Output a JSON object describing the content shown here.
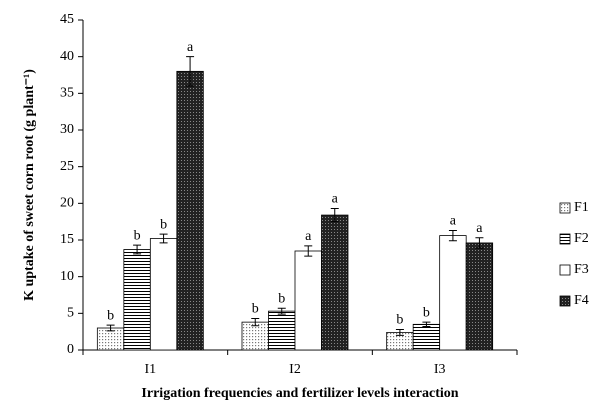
{
  "chart_data": {
    "type": "bar",
    "y_label": "K uptake of sweet corn root (g plant⁻¹)",
    "x_label": "Irrigation frequencies and fertilizer levels interaction",
    "categories": [
      "I1",
      "I2",
      "I3"
    ],
    "series": [
      {
        "name": "F1",
        "color": "#9a9a9a",
        "pattern": "dots",
        "values": [
          3.0,
          3.8,
          2.4
        ],
        "errors": [
          0.4,
          0.5,
          0.4
        ],
        "labels": [
          "b",
          "b",
          "b"
        ]
      },
      {
        "name": "F2",
        "color": "#000000",
        "pattern": "hlines",
        "values": [
          13.7,
          5.3,
          3.5
        ],
        "errors": [
          0.6,
          0.4,
          0.3
        ],
        "labels": [
          "b",
          "b",
          "b"
        ]
      },
      {
        "name": "F3",
        "color": "#ffffff",
        "pattern": "none",
        "values": [
          15.2,
          13.5,
          15.6
        ],
        "errors": [
          0.6,
          0.7,
          0.7
        ],
        "labels": [
          "b",
          "a",
          "a"
        ]
      },
      {
        "name": "F4",
        "color": "#2a2a2a",
        "pattern": "checker",
        "values": [
          38.0,
          18.4,
          14.6
        ],
        "errors": [
          2.0,
          0.9,
          0.7
        ],
        "labels": [
          "a",
          "a",
          "a"
        ]
      }
    ],
    "ylim": [
      0,
      45
    ],
    "yticks": [
      0,
      5,
      10,
      15,
      20,
      25,
      30,
      35,
      40,
      45
    ],
    "grid": false,
    "legend": "right"
  }
}
